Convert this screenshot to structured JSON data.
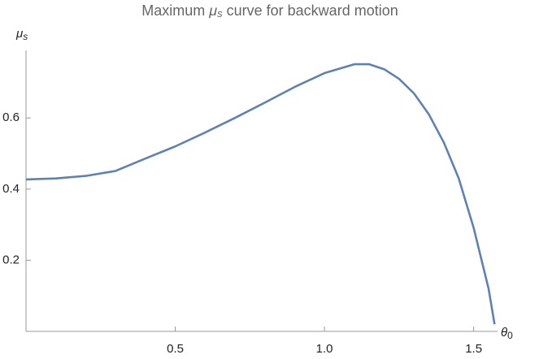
{
  "chart_data": {
    "type": "line",
    "title": {
      "before": "Maximum ",
      "symbol": "μ",
      "subscript": "s",
      "after": " curve for backward motion"
    },
    "xlabel": {
      "symbol": "θ",
      "subscript": "0"
    },
    "ylabel": {
      "symbol": "μ",
      "subscript": "s"
    },
    "x": [
      0,
      0.1,
      0.2,
      0.3,
      0.4,
      0.5,
      0.6,
      0.7,
      0.8,
      0.9,
      1.0,
      1.1,
      1.15,
      1.2,
      1.25,
      1.3,
      1.35,
      1.4,
      1.45,
      1.5,
      1.55,
      1.57
    ],
    "series": [
      {
        "color": "#5e81b5",
        "values": [
          0.427,
          0.43,
          0.437,
          0.451,
          0.486,
          0.52,
          0.559,
          0.6,
          0.643,
          0.687,
          0.726,
          0.751,
          0.751,
          0.737,
          0.71,
          0.669,
          0.61,
          0.531,
          0.43,
          0.291,
          0.12,
          0.02
        ]
      }
    ],
    "xlim": [
      0,
      1.58
    ],
    "ylim": [
      0,
      0.79
    ],
    "xticks": [
      {
        "value": 0.5,
        "label": "0.5"
      },
      {
        "value": 1.0,
        "label": "1.0"
      },
      {
        "value": 1.5,
        "label": "1.5"
      }
    ],
    "yticks": [
      {
        "value": 0.2,
        "label": "0.2"
      },
      {
        "value": 0.4,
        "label": "0.4"
      },
      {
        "value": 0.6,
        "label": "0.6"
      }
    ],
    "grid": false
  }
}
